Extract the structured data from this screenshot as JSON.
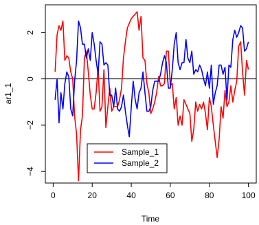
{
  "chart_data": {
    "type": "line",
    "title": "",
    "xlabel": "Time",
    "ylabel": "ar1_1",
    "xlim": [
      0,
      100
    ],
    "ylim": [
      -4.5,
      3.2
    ],
    "x_ticks": [
      0,
      20,
      40,
      60,
      80,
      100
    ],
    "y_ticks": [
      -4,
      -2,
      0,
      2
    ],
    "y_tick_labels": [
      "−4",
      "−2",
      "0",
      "2"
    ],
    "reference_line": 0,
    "grid": false,
    "legend_position": "bottom-center",
    "series": [
      {
        "name": "Sample_1",
        "color": "#ff0000",
        "x": [
          1,
          2,
          3,
          4,
          5,
          6,
          7,
          8,
          9,
          10,
          11,
          12,
          13,
          14,
          15,
          16,
          17,
          18,
          19,
          20,
          21,
          22,
          23,
          24,
          25,
          26,
          27,
          28,
          29,
          30,
          31,
          32,
          33,
          34,
          35,
          36,
          37,
          38,
          39,
          40,
          41,
          42,
          43,
          44,
          45,
          46,
          47,
          48,
          49,
          50,
          51,
          52,
          53,
          54,
          55,
          56,
          57,
          58,
          59,
          60,
          61,
          62,
          63,
          64,
          65,
          66,
          67,
          68,
          69,
          70,
          71,
          72,
          73,
          74,
          75,
          76,
          77,
          78,
          79,
          80,
          81,
          82,
          83,
          84,
          85,
          86,
          87,
          88,
          89,
          90,
          91,
          92,
          93,
          94,
          95,
          96,
          97,
          98,
          99,
          100
        ],
        "values": [
          0.3,
          1.9,
          2.3,
          2.1,
          2.5,
          0.8,
          1.0,
          0.9,
          0.3,
          0.0,
          -1.6,
          -2.4,
          -4.4,
          -2.2,
          -1.6,
          0.9,
          1.2,
          0.3,
          -0.7,
          -1.3,
          -1.3,
          -0.6,
          0.5,
          -1.4,
          -1.2,
          0.4,
          -2.1,
          -1.2,
          -0.4,
          -1.4,
          -1.2,
          -1.2,
          -1.2,
          -0.9,
          -0.4,
          0.9,
          1.6,
          2.2,
          2.4,
          2.6,
          2.7,
          2.8,
          2.9,
          2.1,
          2.7,
          0.9,
          0.8,
          -0.2,
          -0.6,
          -1.5,
          -1.3,
          -1.0,
          -0.6,
          0.1,
          -0.3,
          -0.3,
          -0.2,
          1.2,
          1.2,
          -0.3,
          -0.2,
          -1.3,
          -0.8,
          -2.0,
          -1.6,
          -2.0,
          -0.9,
          -1.1,
          -1.3,
          -1.5,
          -2.7,
          -2.2,
          -1.0,
          -1.4,
          -1.1,
          -1.3,
          -1.0,
          -1.5,
          -2.2,
          -0.8,
          -1.2,
          -2.0,
          -2.7,
          -3.4,
          -2.6,
          -1.2,
          -1.7,
          -0.5,
          -1.2,
          -1.0,
          -0.3,
          -1.0,
          -0.5,
          -0.1,
          1.4,
          1.6,
          0.3,
          -0.7,
          0.8,
          0.4
        ]
      },
      {
        "name": "Sample_2",
        "color": "#0000ff",
        "x": [
          1,
          2,
          3,
          4,
          5,
          6,
          7,
          8,
          9,
          10,
          11,
          12,
          13,
          14,
          15,
          16,
          17,
          18,
          19,
          20,
          21,
          22,
          23,
          24,
          25,
          26,
          27,
          28,
          29,
          30,
          31,
          32,
          33,
          34,
          35,
          36,
          37,
          38,
          39,
          40,
          41,
          42,
          43,
          44,
          45,
          46,
          47,
          48,
          49,
          50,
          51,
          52,
          53,
          54,
          55,
          56,
          57,
          58,
          59,
          60,
          61,
          62,
          63,
          64,
          65,
          66,
          67,
          68,
          69,
          70,
          71,
          72,
          73,
          74,
          75,
          76,
          77,
          78,
          79,
          80,
          81,
          82,
          83,
          84,
          85,
          86,
          87,
          88,
          89,
          90,
          91,
          92,
          93,
          94,
          95,
          96,
          97,
          98,
          99,
          100
        ],
        "values": [
          -0.9,
          0.0,
          -1.9,
          -0.6,
          -1.3,
          -0.2,
          0.3,
          0.1,
          -1.3,
          -1.6,
          -0.1,
          0.8,
          2.5,
          2.2,
          1.5,
          1.5,
          0.9,
          1.3,
          0.8,
          2.0,
          1.5,
          0.8,
          0.2,
          1.6,
          1.5,
          0.6,
          0.7,
          0.6,
          -0.7,
          -0.7,
          -1.2,
          -0.4,
          -1.3,
          -1.4,
          -1.2,
          -0.7,
          -1.4,
          -2.0,
          -2.5,
          -1.2,
          -0.1,
          -0.9,
          -1.3,
          -0.6,
          -0.4,
          0.3,
          -0.6,
          -1.4,
          -1.4,
          -1.2,
          -0.5,
          -0.1,
          -0.1,
          -0.1,
          0.2,
          0.7,
          1.0,
          0.7,
          -0.4,
          -0.4,
          0.4,
          1.5,
          2.0,
          0.7,
          0.4,
          0.7,
          0.7,
          1.7,
          0.9,
          0.7,
          1.2,
          0.2,
          0.4,
          0.3,
          0.6,
          0.4,
          0.0,
          -0.3,
          0.3,
          -0.4,
          0.6,
          -1.1,
          -0.6,
          -0.3,
          0.6,
          0.6,
          0.2,
          0.5,
          -0.9,
          0.6,
          0.5,
          1.7,
          2.1,
          1.8,
          2.0,
          2.3,
          2.2,
          1.2,
          1.3,
          1.6
        ]
      }
    ]
  }
}
